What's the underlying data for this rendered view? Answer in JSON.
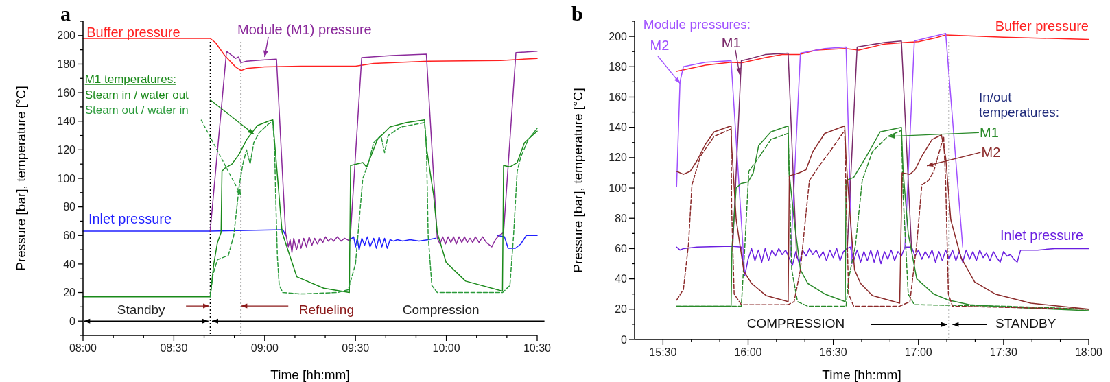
{
  "chart_data": [
    {
      "type": "line",
      "title": "a",
      "xlabel": "Time [hh:mm]",
      "ylabel": "Pressure [bar], temperature [°C]",
      "legend_title": "M1 temperatures:",
      "xlim": [
        8,
        10.5
      ],
      "xticks": [
        {
          "value": 8,
          "label": "08:00"
        },
        {
          "value": 8.1667,
          "label": null
        },
        {
          "value": 8.3333,
          "label": null
        },
        {
          "value": 8.5,
          "label": "08:30"
        },
        {
          "value": 8.6667,
          "label": null
        },
        {
          "value": 8.8333,
          "label": null
        },
        {
          "value": 9,
          "label": "09:00"
        },
        {
          "value": 9.1667,
          "label": null
        },
        {
          "value": 9.3333,
          "label": null
        },
        {
          "value": 9.5,
          "label": "09:30"
        },
        {
          "value": 9.6667,
          "label": null
        },
        {
          "value": 9.8333,
          "label": null
        },
        {
          "value": 10,
          "label": "10:00"
        },
        {
          "value": 10.1667,
          "label": null
        },
        {
          "value": 10.3333,
          "label": null
        },
        {
          "value": 10.5,
          "label": "10:30"
        }
      ],
      "ylim": [
        -10,
        210
      ],
      "yticks": [
        {
          "value": -10,
          "label": null
        },
        0,
        {
          "value": 10,
          "label": null
        },
        20,
        {
          "value": 30,
          "label": null
        },
        40,
        {
          "value": 50,
          "label": null
        },
        60,
        {
          "value": 70,
          "label": null
        },
        80,
        {
          "value": 90,
          "label": null
        },
        100,
        {
          "value": 110,
          "label": null
        },
        120,
        {
          "value": 130,
          "label": null
        },
        140,
        {
          "value": 150,
          "label": null
        },
        160,
        {
          "value": 170,
          "label": null
        },
        180,
        {
          "value": 190,
          "label": null
        },
        200,
        {
          "value": 210,
          "label": null
        }
      ],
      "ref_lines": [
        {
          "axis": "x",
          "value": 8.7,
          "color": "#000000",
          "line_style": "dotted"
        },
        {
          "axis": "x",
          "value": 8.87,
          "color": "#000000",
          "line_style": "dotted"
        }
      ],
      "annotations": [
        "Standby",
        {
          "text": "Refueling",
          "x": 8.87,
          "y": 10.6
        },
        "Compression"
      ],
      "series": [
        {
          "name": "Buffer pressure",
          "color": "#ff2020",
          "x": [
            8,
            8.7,
            8.73,
            8.78,
            8.84,
            8.87,
            8.9,
            9.0,
            9.2,
            9.5,
            9.6,
            9.9,
            10.3,
            10.5
          ],
          "values": [
            198,
            198,
            195,
            186,
            178,
            175.5,
            177,
            178,
            178.5,
            178.5,
            180.5,
            182,
            182.5,
            184
          ]
        },
        {
          "name": "Inlet pressure",
          "color": "#2020ff",
          "x": [
            8,
            8.7,
            9.1,
            9.115,
            9.12,
            9.47,
            9.49,
            9.5,
            9.51,
            9.52,
            9.535,
            9.55,
            9.565,
            9.58,
            9.6,
            9.615,
            9.63,
            9.645,
            9.66,
            9.675,
            9.69,
            9.71,
            9.73,
            9.76,
            9.8,
            9.85,
            9.9,
            9.94,
            9.95,
            10.28,
            10.32,
            10.34,
            10.38,
            10.41,
            10.44,
            10.5
          ],
          "values": [
            63,
            63,
            64,
            60,
            null,
            57,
            59,
            52,
            58,
            50,
            58,
            53,
            59,
            52,
            58,
            51,
            59,
            52,
            58,
            51,
            57,
            56,
            57,
            56,
            57,
            56,
            57,
            58,
            null,
            60,
            59,
            51,
            51,
            54,
            60,
            60
          ]
        },
        {
          "name": "Module (M1) pressure",
          "color": "#8b2a9b",
          "x": [
            8.7,
            8.79,
            8.84,
            8.855,
            8.87,
            8.9,
            9.0,
            9.065,
            9.115,
            9.13,
            9.14,
            9.15,
            9.16,
            9.175,
            9.19,
            9.2,
            9.215,
            9.23,
            9.245,
            9.26,
            9.275,
            9.29,
            9.305,
            9.32,
            9.335,
            9.35,
            9.365,
            9.38,
            9.4,
            9.42,
            9.44,
            9.47,
            9.534,
            9.7,
            9.89,
            9.95,
            9.965,
            9.98,
            9.995,
            10.01,
            10.025,
            10.04,
            10.055,
            10.07,
            10.085,
            10.1,
            10.115,
            10.13,
            10.145,
            10.16,
            10.18,
            10.2,
            10.22,
            10.25,
            10.27,
            10.29,
            10.315,
            10.383,
            10.5
          ],
          "values": [
            63,
            189,
            184,
            185,
            181,
            182,
            183,
            183.5,
            62,
            52,
            57,
            48,
            58,
            50,
            57,
            51,
            58,
            52,
            59,
            53,
            58,
            54,
            58,
            55,
            59,
            56,
            58,
            56,
            59,
            56,
            58,
            56,
            184.5,
            186,
            187,
            58,
            54,
            59,
            54,
            59,
            55,
            59,
            54,
            59,
            55,
            59,
            55,
            58,
            55,
            59,
            55,
            59,
            55,
            52,
            57,
            60,
            62,
            188,
            189
          ]
        },
        {
          "name": "Steam in / water out",
          "color": "#1a8a1a",
          "x": [
            8,
            8.7,
            8.72,
            8.74,
            8.76,
            8.765,
            8.78,
            8.82,
            8.86,
            8.9,
            8.96,
            9.02,
            9.045,
            9.055,
            9.096,
            9.177,
            9.325,
            9.466,
            9.473,
            9.54,
            9.56,
            9.574,
            9.62,
            9.69,
            9.78,
            9.88,
            9.89,
            9.93,
            9.95,
            9.999,
            10.106,
            10.309,
            10.315,
            10.35,
            10.39,
            10.43,
            10.5
          ],
          "values": [
            17,
            17,
            40,
            55,
            62,
            105,
            107,
            110,
            117,
            127,
            137,
            140,
            141,
            125,
            62,
            31,
            23,
            20,
            109,
            111,
            108,
            112,
            127,
            136,
            139,
            141,
            122,
            88,
            62,
            41,
            28,
            21,
            109,
            108,
            111,
            125,
            133
          ]
        },
        {
          "name": "Steam out / water in",
          "color": "#2a9a3a",
          "line_style": "dashed",
          "x": [
            8.7,
            8.716,
            8.74,
            8.8,
            8.83,
            8.86,
            8.88,
            8.9,
            8.92,
            8.94,
            8.97,
            9.02,
            9.045,
            9.055,
            9.06,
            9.07,
            9.08,
            9.1,
            9.2,
            9.4,
            9.46,
            9.5,
            9.52,
            9.54,
            9.57,
            9.6,
            9.64,
            9.66,
            9.68,
            9.75,
            9.88,
            9.89,
            9.9,
            9.92,
            9.95,
            10.1,
            10.2,
            10.31,
            10.35,
            10.37,
            10.39,
            10.41,
            10.45,
            10.5
          ],
          "values": [
            17,
            33,
            43,
            46,
            60,
            95,
            110,
            120,
            110,
            125,
            132,
            138,
            140,
            120,
            90,
            45,
            25,
            20,
            19,
            20,
            22,
            40,
            70,
            100,
            110,
            125,
            130,
            118,
            130,
            136,
            139,
            125,
            60,
            25,
            20,
            20,
            20,
            20,
            25,
            60,
            105,
            115,
            127,
            135
          ]
        }
      ]
    },
    {
      "type": "line",
      "title": "b",
      "xlabel": "Time [hh:mm]",
      "ylabel": "Pressure [bar], temperature [°C]",
      "xlim": [
        15.3333,
        18
      ],
      "xticks": [
        {
          "value": 15.5,
          "label": "15:30"
        },
        {
          "value": 15.6667,
          "label": null
        },
        {
          "value": 15.8333,
          "label": null
        },
        {
          "value": 16,
          "label": "16:00"
        },
        {
          "value": 16.1667,
          "label": null
        },
        {
          "value": 16.3333,
          "label": null
        },
        {
          "value": 16.5,
          "label": "16:30"
        },
        {
          "value": 16.6667,
          "label": null
        },
        {
          "value": 16.8333,
          "label": null
        },
        {
          "value": 17,
          "label": "17:00"
        },
        {
          "value": 17.1667,
          "label": null
        },
        {
          "value": 17.3333,
          "label": null
        },
        {
          "value": 17.5,
          "label": "17:30"
        },
        {
          "value": 17.6667,
          "label": null
        },
        {
          "value": 17.8333,
          "label": null
        },
        {
          "value": 18,
          "label": "18:00"
        }
      ],
      "ylim": [
        0,
        210
      ],
      "yticks": [
        0,
        {
          "value": 10,
          "label": null
        },
        20,
        {
          "value": 30,
          "label": null
        },
        40,
        {
          "value": 50,
          "label": null
        },
        60,
        {
          "value": 70,
          "label": null
        },
        80,
        {
          "value": 90,
          "label": null
        },
        100,
        {
          "value": 110,
          "label": null
        },
        120,
        {
          "value": 130,
          "label": null
        },
        140,
        {
          "value": 150,
          "label": null
        },
        160,
        {
          "value": 170,
          "label": null
        },
        180,
        {
          "value": 190,
          "label": null
        },
        200,
        {
          "value": 210,
          "label": null
        }
      ],
      "ref_lines": [
        {
          "axis": "x",
          "value": 17.18,
          "color": "#000000",
          "line_style": "dotted"
        }
      ],
      "annotations": [
        "Module pressures:",
        {
          "text": "In/out temperatures:",
          "x": 16.825,
          "y": 134
        },
        "COMPRESSION",
        "STANDBY"
      ],
      "series": [
        {
          "name": "Buffer pressure",
          "color": "#ff2020",
          "x": [
            15.58,
            15.75,
            15.9,
            15.96,
            16.1,
            16.2,
            16.3,
            16.4,
            16.57,
            16.65,
            16.8,
            16.92,
            17.0,
            17.1,
            17.16,
            17.5,
            18
          ],
          "values": [
            177,
            181,
            183,
            182.5,
            186,
            188,
            188,
            191,
            192,
            191,
            195,
            196,
            196.5,
            199,
            201,
            199.5,
            198
          ]
        },
        {
          "name": "Inlet pressure",
          "color": "#6a1ee0",
          "x": [
            15.58,
            15.6,
            15.62,
            15.7,
            15.9,
            15.96,
            15.98,
            16.0,
            16.02,
            16.04,
            16.06,
            16.08,
            16.1,
            16.12,
            16.14,
            16.16,
            16.18,
            16.2,
            16.22,
            16.24,
            16.26,
            16.28,
            16.3,
            16.32,
            16.34,
            16.36,
            16.38,
            16.4,
            16.42,
            16.44,
            16.46,
            16.48,
            16.5,
            16.52,
            16.54,
            16.56,
            16.58,
            16.6,
            16.62,
            16.64,
            16.66,
            16.68,
            16.7,
            16.72,
            16.74,
            16.76,
            16.78,
            16.8,
            16.82,
            16.84,
            16.86,
            16.88,
            16.9,
            16.92,
            16.96,
            16.98,
            17.0,
            17.02,
            17.04,
            17.06,
            17.08,
            17.1,
            17.12,
            17.14,
            17.16,
            17.18,
            17.2,
            17.22,
            17.24,
            17.26,
            17.28,
            17.3,
            17.32,
            17.34,
            17.36,
            17.38,
            17.4,
            17.42,
            17.44,
            17.46,
            17.48,
            17.5,
            17.52,
            17.54,
            17.56,
            17.58,
            17.6,
            17.7,
            17.8,
            17.9,
            18
          ],
          "values": [
            61,
            59,
            60,
            61,
            61.5,
            61,
            42,
            53,
            60,
            52,
            59,
            51,
            60,
            52,
            59,
            55,
            60,
            56,
            59,
            54,
            49,
            58,
            50,
            59,
            55,
            60,
            56,
            59,
            54,
            58,
            52,
            59,
            54,
            60,
            52,
            58,
            60,
            61,
            52,
            59,
            51,
            58,
            52,
            59,
            51,
            59,
            50,
            58,
            53,
            59,
            52,
            58,
            55,
            61,
            61,
            55,
            59,
            53,
            58,
            54,
            59,
            51,
            58,
            52,
            59,
            53,
            59,
            52,
            58,
            51,
            59,
            53,
            58,
            52,
            59,
            54,
            57,
            52,
            58,
            54,
            51,
            58,
            55,
            56,
            53,
            51,
            59,
            59,
            60,
            60,
            60
          ]
        },
        {
          "name": "M2",
          "color": "#a050ff",
          "x": [
            15.58,
            15.6,
            15.62,
            15.75,
            15.9,
            15.98,
            16.0,
            16.25,
            16.307,
            16.45,
            16.575,
            16.61,
            16.62,
            16.92,
            16.976,
            17.05,
            17.16,
            17.26
          ],
          "values": [
            101,
            170,
            180,
            183,
            184,
            43,
            null,
            55,
            189,
            192,
            193,
            50,
            null,
            60,
            197,
            199,
            202,
            61
          ]
        },
        {
          "name": "M1",
          "color": "#7a2a6a",
          "x": [
            15.91,
            15.96,
            16.0,
            16.1,
            16.235,
            16.285,
            16.3,
            16.58,
            16.64,
            16.8,
            16.9,
            16.96
          ],
          "values": [
            62,
            184,
            185,
            188,
            189,
            54,
            null,
            55,
            193,
            196,
            197,
            59
          ]
        },
        {
          "name": "M1",
          "color": "#2a8a2a",
          "x": [
            15.58,
            15.9,
            15.905,
            15.93,
            15.96,
            16.0,
            16.03,
            16.062,
            16.134,
            16.235,
            16.24,
            16.27,
            16.307,
            16.35,
            16.45,
            16.57,
            16.575,
            16.62,
            16.69,
            16.775,
            16.9,
            16.91,
            16.94,
            16.99,
            17.09,
            17.176,
            17.3,
            17.59,
            18
          ],
          "values": [
            22,
            22,
            60,
            100,
            103,
            104,
            110,
            128,
            137,
            141,
            111,
            79,
            46,
            37,
            30,
            25,
            105,
            107,
            120,
            137,
            140,
            111,
            70,
            40,
            30,
            26,
            23,
            21,
            19
          ]
        },
        {
          "color": "#2a8a2a",
          "line_style": "dashed",
          "x": [
            15.58,
            15.9,
            15.96,
            15.98,
            16.004,
            16.062,
            16.134,
            16.235,
            16.256,
            16.29,
            16.35,
            16.575,
            16.59,
            16.63,
            16.67,
            16.73,
            16.82,
            16.9,
            16.91,
            16.94,
            16.976,
            17.5,
            18
          ],
          "values": [
            22,
            22,
            22,
            60,
            111,
            120,
            132,
            136,
            46,
            25,
            22,
            22,
            40,
            62,
            105,
            124,
            134,
            138,
            95,
            30,
            23,
            22,
            20
          ]
        },
        {
          "name": "M2",
          "color": "#8b2a2a",
          "x": [
            15.58,
            15.62,
            15.66,
            15.7,
            15.75,
            15.8,
            15.9,
            15.903,
            15.93,
            15.975,
            16.02,
            16.105,
            16.235,
            16.242,
            16.3,
            16.34,
            16.38,
            16.45,
            16.567,
            16.575,
            16.6,
            16.625,
            16.66,
            16.73,
            16.89,
            16.904,
            16.95,
            16.98,
            17.02,
            17.08,
            17.135,
            17.16,
            17.19,
            17.25,
            17.33,
            17.45,
            17.66,
            18
          ],
          "values": [
            111,
            109,
            111,
            118,
            129,
            137,
            141,
            128,
            79,
            45,
            37,
            29,
            25,
            108,
            110,
            112,
            124,
            136,
            141,
            120,
            79,
            46,
            37,
            29,
            24,
            110,
            109,
            112,
            121,
            132,
            135,
            120,
            79,
            54,
            38,
            30,
            24,
            20
          ]
        },
        {
          "color": "#8b2a2a",
          "line_style": "dashed",
          "x": [
            15.58,
            15.62,
            15.65,
            15.67,
            15.72,
            15.8,
            15.9,
            15.903,
            15.918,
            15.96,
            16.235,
            16.27,
            16.307,
            16.336,
            16.36,
            16.42,
            16.48,
            16.567,
            16.575,
            16.59,
            16.62,
            16.89,
            16.95,
            16.99,
            17.02,
            17.06,
            17.09,
            17.148,
            17.16,
            17.176,
            17.2,
            17.59,
            18
          ],
          "values": [
            26,
            33,
            63,
            102,
            121,
            134,
            139,
            87,
            30,
            23,
            23,
            25,
            46,
            79,
            105,
            115,
            124,
            138,
            95,
            30,
            22,
            22,
            25,
            63,
            102,
            105,
            111,
            134,
            103,
            30,
            22,
            21,
            20
          ]
        }
      ]
    }
  ]
}
